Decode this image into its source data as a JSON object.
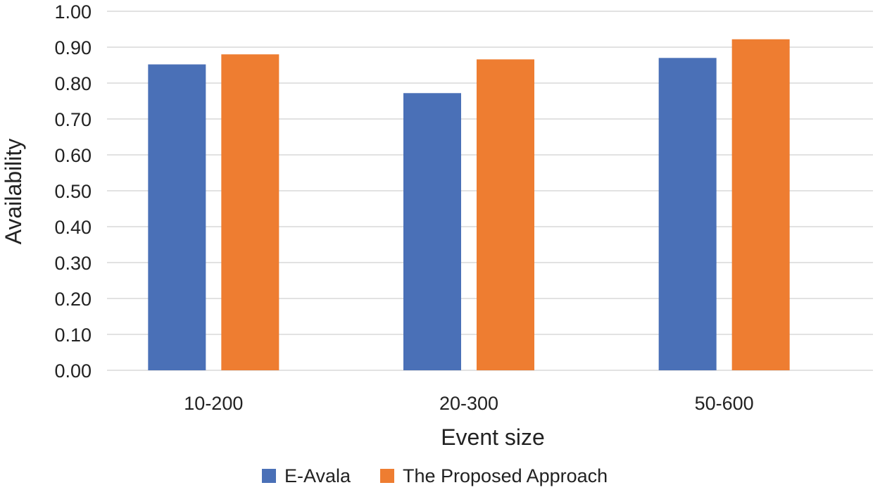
{
  "chart_data": {
    "type": "bar",
    "title": "",
    "xlabel": "Event size",
    "ylabel": "Availability",
    "categories": [
      "10-200",
      "20-300",
      "50-600"
    ],
    "series": [
      {
        "name": "E-Avala",
        "color": "#4a70b7",
        "values": [
          0.852,
          0.772,
          0.87
        ]
      },
      {
        "name": "The Proposed Approach",
        "color": "#ee7d31",
        "values": [
          0.88,
          0.866,
          0.922
        ]
      }
    ],
    "ylim": [
      0,
      1.0
    ],
    "y_ticks": [
      "0.00",
      "0.10",
      "0.20",
      "0.30",
      "0.40",
      "0.50",
      "0.60",
      "0.70",
      "0.80",
      "0.90",
      "1.00"
    ],
    "grid": true,
    "legend_position": "bottom"
  }
}
